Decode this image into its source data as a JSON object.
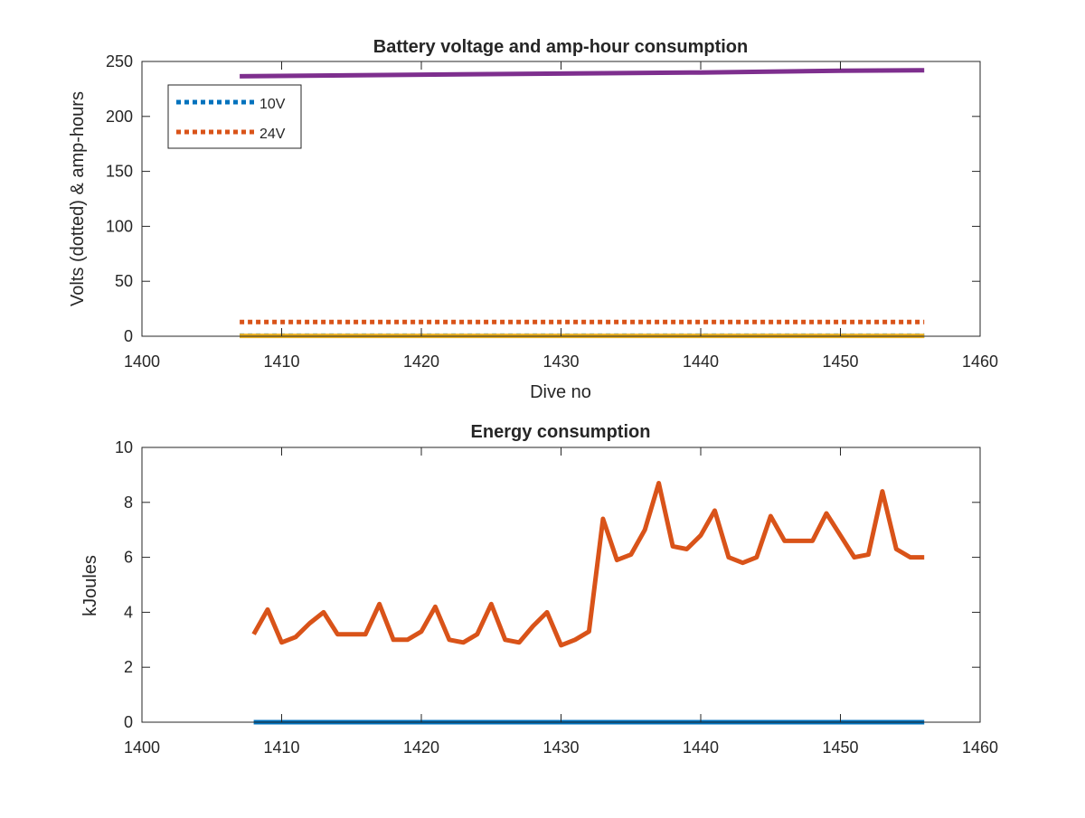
{
  "chart_data": [
    {
      "type": "line",
      "title": "Battery voltage and amp-hour consumption",
      "xlabel": "Dive no",
      "ylabel": "Volts (dotted) & amp-hours",
      "xlim": [
        1400,
        1460
      ],
      "ylim": [
        0,
        250
      ],
      "xticks": [
        1400,
        1410,
        1420,
        1430,
        1440,
        1450,
        1460
      ],
      "yticks": [
        0,
        50,
        100,
        150,
        200,
        250
      ],
      "legend_position": "top-left",
      "series": [
        {
          "name": "10V",
          "style": "dotted",
          "color": "#0072BD",
          "legend": true,
          "x": [
            1407,
            1456
          ],
          "y": [
            0.5,
            0.5
          ]
        },
        {
          "name": "24V",
          "style": "dotted",
          "color": "#D95319",
          "legend": true,
          "x": [
            1407,
            1456
          ],
          "y": [
            13,
            13
          ]
        },
        {
          "style": "solid",
          "color": "#EDB120",
          "legend": false,
          "x": [
            1407,
            1456
          ],
          "y": [
            0.3,
            0.3
          ]
        },
        {
          "style": "solid",
          "color": "#7E2F8E",
          "legend": false,
          "x": [
            1407,
            1420,
            1430,
            1440,
            1450,
            1456
          ],
          "y": [
            236.5,
            238,
            239,
            240,
            241.5,
            242
          ]
        }
      ]
    },
    {
      "type": "line",
      "title": "Energy consumption",
      "xlabel": "",
      "ylabel": "kJoules",
      "xlim": [
        1400,
        1460
      ],
      "ylim": [
        0,
        10
      ],
      "xticks": [
        1400,
        1410,
        1420,
        1430,
        1440,
        1450,
        1460
      ],
      "yticks": [
        0,
        2,
        4,
        6,
        8,
        10
      ],
      "series": [
        {
          "style": "solid",
          "color": "#0072BD",
          "x": [
            1408,
            1456
          ],
          "y": [
            0,
            0
          ]
        },
        {
          "style": "solid",
          "color": "#D95319",
          "x": [
            1408,
            1409,
            1410,
            1411,
            1412,
            1413,
            1414,
            1415,
            1416,
            1417,
            1418,
            1419,
            1420,
            1421,
            1422,
            1423,
            1424,
            1425,
            1426,
            1427,
            1428,
            1429,
            1430,
            1431,
            1432,
            1433,
            1434,
            1435,
            1436,
            1437,
            1438,
            1439,
            1440,
            1441,
            1442,
            1443,
            1444,
            1445,
            1446,
            1447,
            1448,
            1449,
            1450,
            1451,
            1452,
            1453,
            1454,
            1455,
            1456
          ],
          "y": [
            3.2,
            4.1,
            2.9,
            3.1,
            3.6,
            4.0,
            3.2,
            3.2,
            3.2,
            4.3,
            3.0,
            3.0,
            3.3,
            4.2,
            3.0,
            2.9,
            3.2,
            4.3,
            3.0,
            2.9,
            3.5,
            4.0,
            2.8,
            3.0,
            3.3,
            7.4,
            5.9,
            6.1,
            7.0,
            8.7,
            6.4,
            6.3,
            6.8,
            7.7,
            6.0,
            5.8,
            6.0,
            7.5,
            6.6,
            6.6,
            6.6,
            7.6,
            6.8,
            6.0,
            6.1,
            8.4,
            6.3,
            6.0,
            6.0
          ]
        }
      ]
    }
  ]
}
